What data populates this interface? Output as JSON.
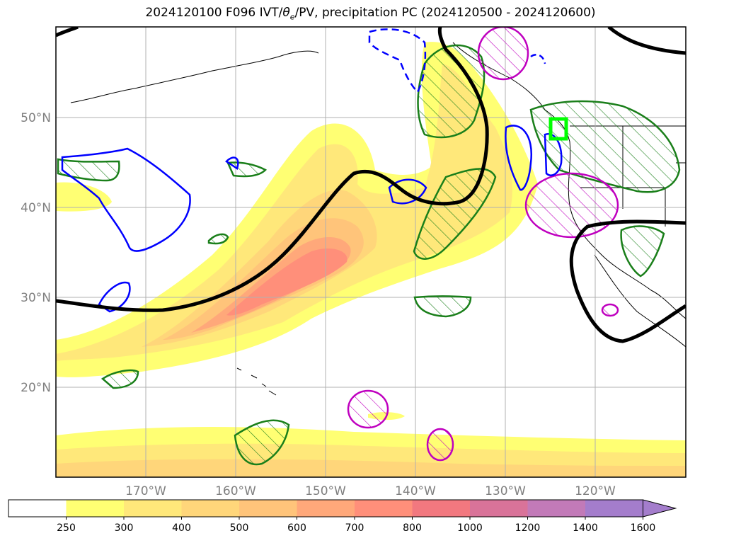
{
  "title": "2024120100 F096 IVT/θe/PV, precipitation PC (2024120500 - 2024120600)",
  "title_parts": {
    "prefix": "2024120100 F096 IVT/",
    "theta": "θ",
    "sub": "e",
    "suffix": "/PV, precipitation PC (2024120500 - 2024120600)"
  },
  "map": {
    "latitudes": [
      "50°N",
      "40°N",
      "30°N",
      "20°N"
    ],
    "longitudes": [
      "170°W",
      "160°W",
      "150°W",
      "140°W",
      "130°W",
      "120°W"
    ],
    "colors": {
      "pv_contour": "#000000",
      "green_contour": "#1a7f1a",
      "blue_contour": "#0000ff",
      "magenta_contour": "#bf00bf",
      "highlight_box": "#00ff00"
    }
  },
  "colorbar": {
    "levels": [
      "250",
      "300",
      "400",
      "500",
      "600",
      "700",
      "800",
      "1000",
      "1200",
      "1400",
      "1600"
    ],
    "colors": [
      "#ffffff",
      "#ffff73",
      "#ffe87a",
      "#ffd67a",
      "#ffc47a",
      "#ffa87a",
      "#ff8f7a",
      "#f2787f",
      "#d97399",
      "#c27ab8",
      "#a47dcc"
    ],
    "extend": "max"
  }
}
